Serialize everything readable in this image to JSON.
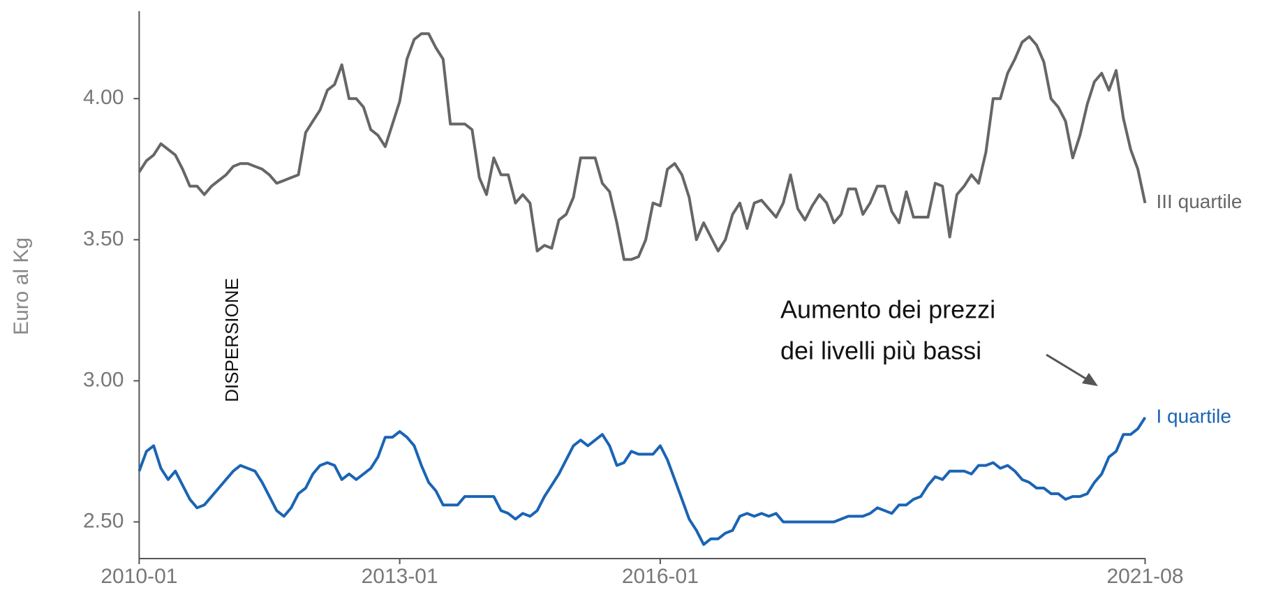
{
  "chart_data": {
    "type": "line",
    "y_label": "Euro al Kg",
    "annotations": [
      {
        "text": "DISPERSIONE"
      },
      {
        "lines": [
          "Aumento dei prezzi",
          "dei livelli più bassi"
        ]
      }
    ],
    "x": [
      "2010-01",
      "2010-02",
      "2010-03",
      "2010-04",
      "2010-05",
      "2010-06",
      "2010-07",
      "2010-08",
      "2010-09",
      "2010-10",
      "2010-11",
      "2010-12",
      "2011-01",
      "2011-02",
      "2011-03",
      "2011-04",
      "2011-05",
      "2011-06",
      "2011-07",
      "2011-08",
      "2011-09",
      "2011-10",
      "2011-11",
      "2011-12",
      "2012-01",
      "2012-02",
      "2012-03",
      "2012-04",
      "2012-05",
      "2012-06",
      "2012-07",
      "2012-08",
      "2012-09",
      "2012-10",
      "2012-11",
      "2012-12",
      "2013-01",
      "2013-02",
      "2013-03",
      "2013-04",
      "2013-05",
      "2013-06",
      "2013-07",
      "2013-08",
      "2013-09",
      "2013-10",
      "2013-11",
      "2013-12",
      "2014-01",
      "2014-02",
      "2014-03",
      "2014-04",
      "2014-05",
      "2014-06",
      "2014-07",
      "2014-08",
      "2014-09",
      "2014-10",
      "2014-11",
      "2014-12",
      "2015-01",
      "2015-02",
      "2015-03",
      "2015-04",
      "2015-05",
      "2015-06",
      "2015-07",
      "2015-08",
      "2015-09",
      "2015-10",
      "2015-11",
      "2015-12",
      "2016-01",
      "2016-02",
      "2016-03",
      "2016-04",
      "2016-05",
      "2016-06",
      "2016-07",
      "2016-08",
      "2016-09",
      "2016-10",
      "2016-11",
      "2016-12",
      "2017-01",
      "2017-02",
      "2017-03",
      "2017-04",
      "2017-05",
      "2017-06",
      "2017-07",
      "2017-08",
      "2017-09",
      "2017-10",
      "2017-11",
      "2017-12",
      "2018-01",
      "2018-02",
      "2018-03",
      "2018-04",
      "2018-05",
      "2018-06",
      "2018-07",
      "2018-08",
      "2018-09",
      "2018-10",
      "2018-11",
      "2018-12",
      "2019-01",
      "2019-02",
      "2019-03",
      "2019-04",
      "2019-05",
      "2019-06",
      "2019-07",
      "2019-08",
      "2019-09",
      "2019-10",
      "2019-11",
      "2019-12",
      "2020-01",
      "2020-02",
      "2020-03",
      "2020-04",
      "2020-05",
      "2020-06",
      "2020-07",
      "2020-08",
      "2020-09",
      "2020-10",
      "2020-11",
      "2020-12",
      "2021-01",
      "2021-02",
      "2021-03",
      "2021-04",
      "2021-05",
      "2021-06",
      "2021-07",
      "2021-08"
    ],
    "xticks": [
      "2010-01",
      "2013-01",
      "2016-01",
      "2021-08"
    ],
    "ylim": [
      2.37,
      4.31
    ],
    "yticks": [
      {
        "value": 2.5,
        "label": "2.50"
      },
      {
        "value": 3,
        "label": "3.00"
      },
      {
        "value": 3.5,
        "label": "3.50"
      },
      {
        "value": 4,
        "label": "4.00"
      }
    ],
    "grid": false,
    "series": [
      {
        "name": "III quartile",
        "color": "#666666",
        "values": [
          3.74,
          3.78,
          3.8,
          3.84,
          3.82,
          3.8,
          3.75,
          3.69,
          3.69,
          3.66,
          3.69,
          3.71,
          3.73,
          3.76,
          3.77,
          3.77,
          3.76,
          3.75,
          3.73,
          3.7,
          3.71,
          3.72,
          3.73,
          3.88,
          3.92,
          3.96,
          4.03,
          4.05,
          4.12,
          4.0,
          4.0,
          3.97,
          3.89,
          3.87,
          3.83,
          3.91,
          3.99,
          4.14,
          4.21,
          4.23,
          4.23,
          4.18,
          4.14,
          3.91,
          3.91,
          3.91,
          3.89,
          3.72,
          3.66,
          3.79,
          3.73,
          3.73,
          3.63,
          3.66,
          3.63,
          3.46,
          3.48,
          3.47,
          3.57,
          3.59,
          3.65,
          3.79,
          3.79,
          3.79,
          3.7,
          3.67,
          3.56,
          3.43,
          3.43,
          3.44,
          3.5,
          3.63,
          3.62,
          3.75,
          3.77,
          3.73,
          3.65,
          3.5,
          3.56,
          3.51,
          3.46,
          3.5,
          3.59,
          3.63,
          3.54,
          3.63,
          3.64,
          3.61,
          3.58,
          3.63,
          3.73,
          3.61,
          3.57,
          3.62,
          3.66,
          3.63,
          3.56,
          3.59,
          3.68,
          3.68,
          3.59,
          3.63,
          3.69,
          3.69,
          3.6,
          3.56,
          3.67,
          3.58,
          3.58,
          3.58,
          3.7,
          3.69,
          3.51,
          3.66,
          3.69,
          3.73,
          3.7,
          3.81,
          4.0,
          4.0,
          4.09,
          4.14,
          4.2,
          4.22,
          4.19,
          4.13,
          4.0,
          3.97,
          3.92,
          3.79,
          3.87,
          3.98,
          4.06,
          4.09,
          4.03,
          4.1,
          3.93,
          3.82,
          3.75,
          3.63
        ]
      },
      {
        "name": "I quartile",
        "color": "#1a64b4",
        "values": [
          2.68,
          2.75,
          2.77,
          2.69,
          2.65,
          2.68,
          2.63,
          2.58,
          2.55,
          2.56,
          2.59,
          2.62,
          2.65,
          2.68,
          2.7,
          2.69,
          2.68,
          2.64,
          2.59,
          2.54,
          2.52,
          2.55,
          2.6,
          2.62,
          2.67,
          2.7,
          2.71,
          2.7,
          2.65,
          2.67,
          2.65,
          2.67,
          2.69,
          2.73,
          2.8,
          2.8,
          2.82,
          2.8,
          2.77,
          2.7,
          2.64,
          2.61,
          2.56,
          2.56,
          2.56,
          2.59,
          2.59,
          2.59,
          2.59,
          2.59,
          2.54,
          2.53,
          2.51,
          2.53,
          2.52,
          2.54,
          2.59,
          2.63,
          2.67,
          2.72,
          2.77,
          2.79,
          2.77,
          2.79,
          2.81,
          2.77,
          2.7,
          2.71,
          2.75,
          2.74,
          2.74,
          2.74,
          2.77,
          2.72,
          2.65,
          2.58,
          2.51,
          2.47,
          2.42,
          2.44,
          2.44,
          2.46,
          2.47,
          2.52,
          2.53,
          2.52,
          2.53,
          2.52,
          2.53,
          2.5,
          2.5,
          2.5,
          2.5,
          2.5,
          2.5,
          2.5,
          2.5,
          2.51,
          2.52,
          2.52,
          2.52,
          2.53,
          2.55,
          2.54,
          2.53,
          2.56,
          2.56,
          2.58,
          2.59,
          2.63,
          2.66,
          2.65,
          2.68,
          2.68,
          2.68,
          2.67,
          2.7,
          2.7,
          2.71,
          2.69,
          2.7,
          2.68,
          2.65,
          2.64,
          2.62,
          2.62,
          2.6,
          2.6,
          2.58,
          2.59,
          2.59,
          2.6,
          2.64,
          2.67,
          2.73,
          2.75,
          2.81,
          2.81,
          2.83,
          2.87
        ]
      }
    ]
  }
}
